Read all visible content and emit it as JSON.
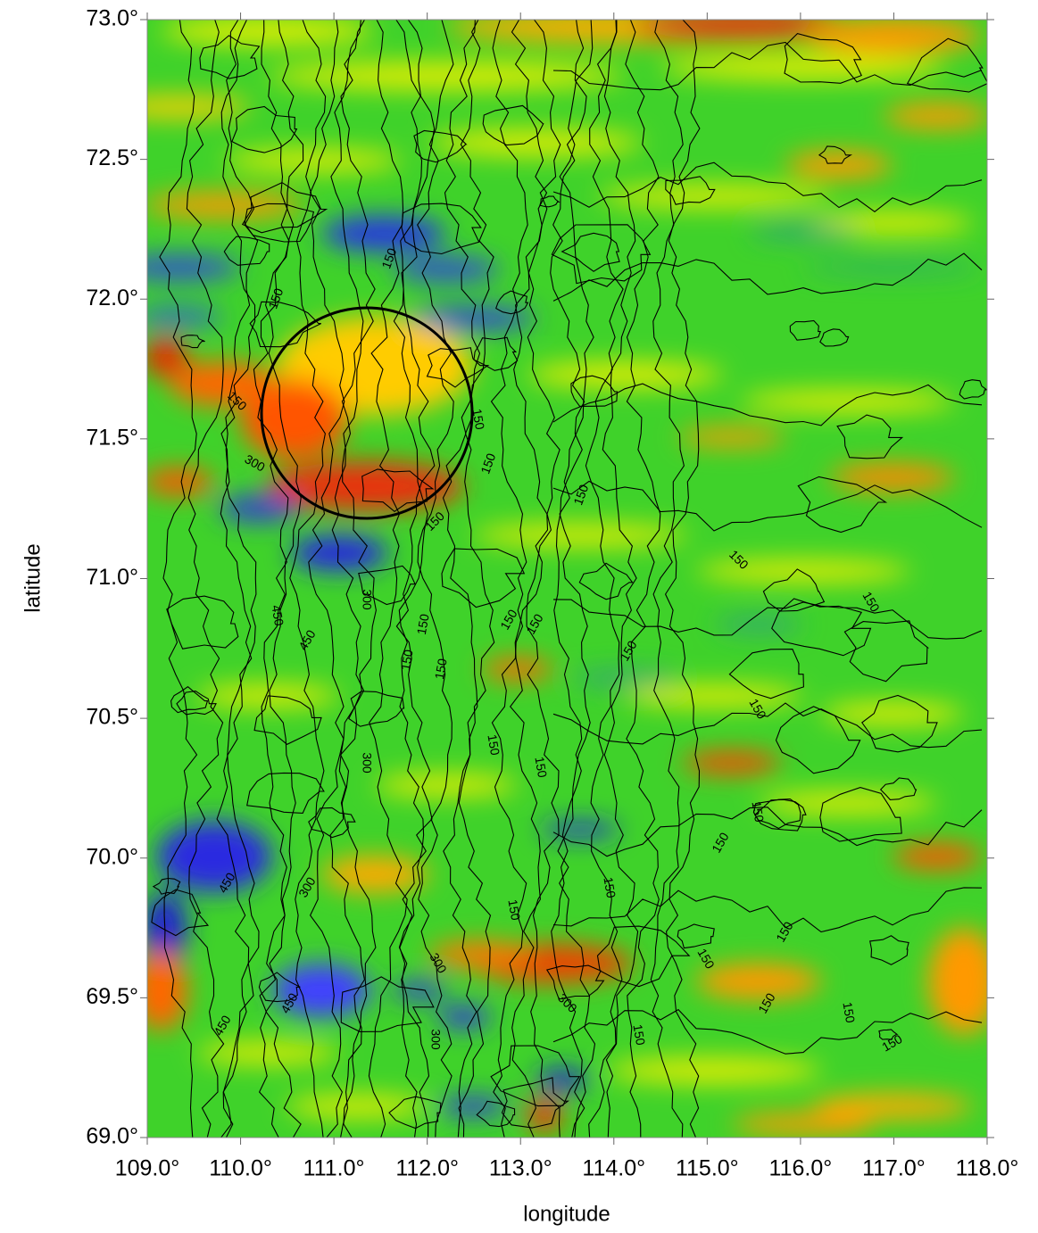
{
  "chart_data": {
    "type": "map",
    "xlabel": "longitude",
    "ylabel": "latitude",
    "xlim": [
      109,
      118
    ],
    "ylim": [
      69,
      73
    ],
    "xticks": [
      {
        "value": 109,
        "label": "109.0°"
      },
      {
        "value": 110,
        "label": "110.0°"
      },
      {
        "value": 111,
        "label": "111.0°"
      },
      {
        "value": 112,
        "label": "112.0°"
      },
      {
        "value": 113,
        "label": "113.0°"
      },
      {
        "value": 114,
        "label": "114.0°"
      },
      {
        "value": 115,
        "label": "115.0°"
      },
      {
        "value": 116,
        "label": "116.0°"
      },
      {
        "value": 117,
        "label": "117.0°"
      },
      {
        "value": 118,
        "label": "118.0°"
      }
    ],
    "yticks": [
      {
        "value": 69,
        "label": "69.0°"
      },
      {
        "value": 69.5,
        "label": "69.5°"
      },
      {
        "value": 70,
        "label": "70.0°"
      },
      {
        "value": 70.5,
        "label": "70.5°"
      },
      {
        "value": 71,
        "label": "71.0°"
      },
      {
        "value": 71.5,
        "label": "71.5°"
      },
      {
        "value": 72,
        "label": "72.0°"
      },
      {
        "value": 72.5,
        "label": "72.5°"
      },
      {
        "value": 73,
        "label": "73.0°"
      }
    ],
    "contour_levels": [
      150,
      300,
      450
    ]
  }
}
